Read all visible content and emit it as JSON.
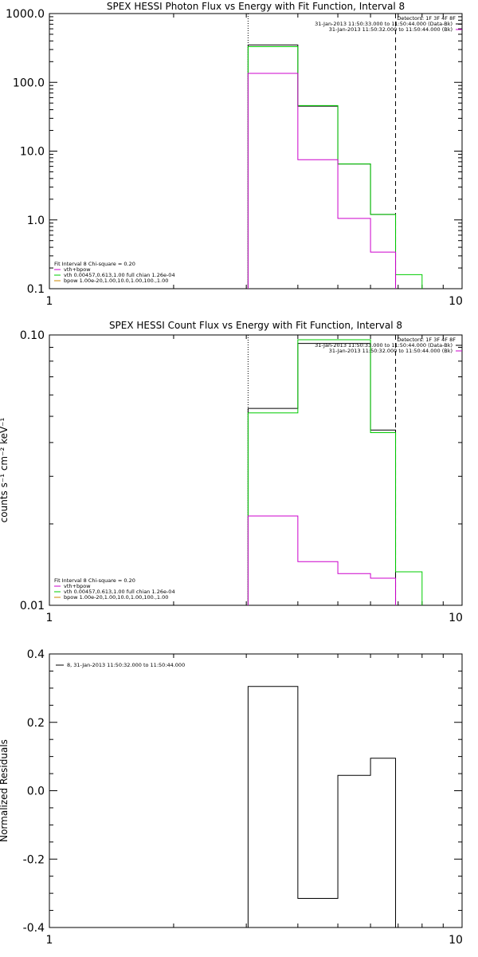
{
  "colors": {
    "total": "#000000",
    "vth": "#cc00cc",
    "fit": "#00cc00",
    "bpow": "#cc8800",
    "data": "#000000"
  },
  "chart_data": [
    {
      "type": "line",
      "step": true,
      "title": "SPEX HESSI Photon Flux vs Energy with Fit Function, Interval 8",
      "xlabel": "",
      "ylabel": "",
      "xscale": "log",
      "yscale": "log",
      "xlim": [
        1,
        10
      ],
      "ylim": [
        0.1,
        1000
      ],
      "x_ticks": [
        "1",
        "10"
      ],
      "y_ticks": [
        "1000.0",
        "100.0",
        "10.0",
        "1.0",
        "0.1"
      ],
      "vlines": [
        {
          "x": 3.03,
          "style": "dotted"
        },
        {
          "x": 6.9,
          "style": "dashed"
        }
      ],
      "legend_top": [
        "Detectors: 1F 3F 4F 8F",
        "31-Jan-2013 11:50:33.000 to 11:50:44.000 (Data-Bk)",
        "31-Jan-2013 11:50:32.000 to 11:50:44.000 (Bk)"
      ],
      "legend_bottom": [
        {
          "text": "Fit Interval 8   Chi-square = 0.20",
          "color": ""
        },
        {
          "text": "vth+bpow",
          "color": "#cc00cc"
        },
        {
          "text": "vth 0.00457,0.613,1.00  full chian 1.26e-04",
          "color": "#00cc00"
        },
        {
          "text": "bpow 1.00e-20,1.00,10.0,1.00,100.,1.00",
          "color": "#cc8800"
        }
      ],
      "series": [
        {
          "key": "data",
          "color": "#000000",
          "edges": [
            3.03,
            4.0,
            5.0,
            6.0,
            6.9
          ],
          "values": [
            350,
            45,
            6.5,
            1.2
          ]
        },
        {
          "key": "fit",
          "color": "#00cc00",
          "edges": [
            3.03,
            4.0,
            5.0,
            6.0,
            6.9,
            8.0
          ],
          "values": [
            330,
            46,
            6.5,
            1.2,
            0.16
          ]
        },
        {
          "key": "vth",
          "color": "#cc00cc",
          "edges": [
            3.03,
            4.0,
            5.0,
            6.0,
            6.9
          ],
          "values": [
            135,
            7.5,
            1.05,
            0.34
          ]
        }
      ]
    },
    {
      "type": "line",
      "step": true,
      "title": "SPEX HESSI Count Flux vs Energy with Fit Function, Interval 8",
      "xlabel": "",
      "ylabel": "counts s⁻¹ cm⁻² keV⁻¹",
      "xscale": "log",
      "yscale": "log",
      "xlim": [
        1,
        10
      ],
      "ylim": [
        0.01,
        0.1
      ],
      "x_ticks": [
        "1",
        "10"
      ],
      "y_ticks": [
        "0.10",
        "0.01"
      ],
      "vlines": [
        {
          "x": 3.03,
          "style": "dotted"
        },
        {
          "x": 6.9,
          "style": "dashed"
        }
      ],
      "legend_top": [
        "Detectors: 1F 3F 4F 8F",
        "31-Jan-2013 11:50:33.000 to 11:50:44.000 (Data-Bk)",
        "31-Jan-2013 11:50:32.000 to 11:50:44.000 (Bk)"
      ],
      "legend_bottom": [
        {
          "text": "Fit Interval 8   Chi-square = 0.20",
          "color": ""
        },
        {
          "text": "vth+bpow",
          "color": "#cc00cc"
        },
        {
          "text": "vth 0.00457,0.613,1.00  full chian 1.26e-04",
          "color": "#00cc00"
        },
        {
          "text": "bpow 1.00e-20,1.00,10.0,1.00,100.,1.00",
          "color": "#cc8800"
        }
      ],
      "series": [
        {
          "key": "data",
          "color": "#000000",
          "edges": [
            3.03,
            4.0,
            5.0,
            6.0,
            6.9
          ],
          "values": [
            0.0535,
            0.093,
            0.093,
            0.0445
          ]
        },
        {
          "key": "fit",
          "color": "#00cc00",
          "edges": [
            3.03,
            4.0,
            5.0,
            6.0,
            6.9,
            8.0
          ],
          "values": [
            0.0515,
            0.096,
            0.096,
            0.0435,
            0.0133
          ]
        },
        {
          "key": "vth",
          "color": "#cc00cc",
          "edges": [
            3.03,
            4.0,
            5.0,
            6.0,
            6.9
          ],
          "values": [
            0.0214,
            0.0145,
            0.0131,
            0.0126
          ]
        }
      ]
    },
    {
      "type": "line",
      "step": true,
      "title": "",
      "xlabel": "",
      "ylabel": "Normalized Residuals",
      "xscale": "log",
      "yscale": "linear",
      "xlim": [
        1,
        10
      ],
      "ylim": [
        -0.4,
        0.4
      ],
      "x_ticks": [
        "1",
        "10"
      ],
      "y_ticks": [
        "0.4",
        "0.2",
        "0.0",
        "-0.2",
        "-0.4"
      ],
      "legend_top": [
        {
          "text": "8, 31-Jan-2013 11:50:32.000 to 11:50:44.000",
          "color": "#000000"
        }
      ],
      "series": [
        {
          "key": "residuals",
          "color": "#000000",
          "edges": [
            3.03,
            4.0,
            5.0,
            6.0,
            6.9
          ],
          "values": [
            0.305,
            -0.315,
            0.045,
            0.095
          ]
        }
      ]
    }
  ]
}
